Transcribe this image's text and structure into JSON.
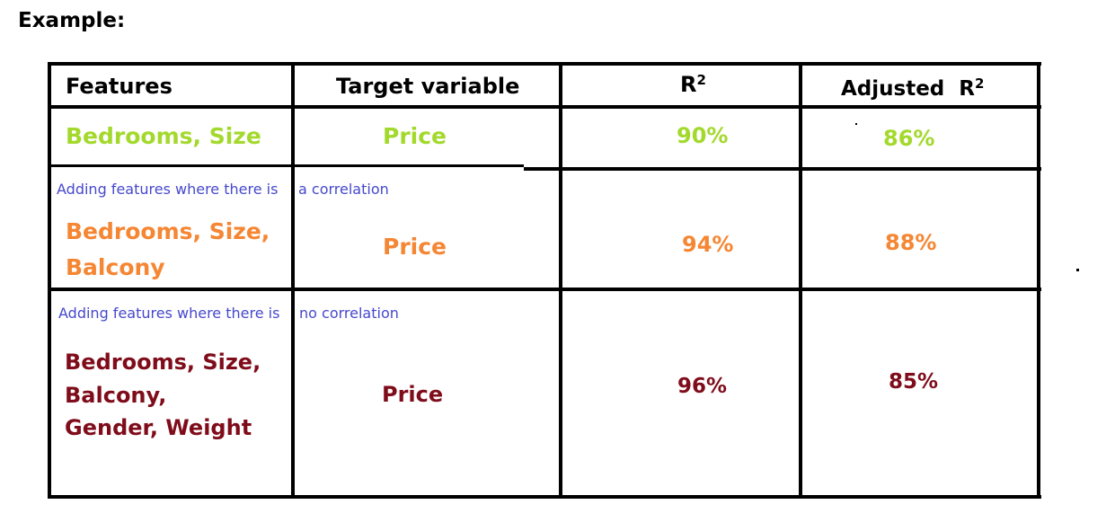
{
  "heading": "Example:",
  "header": {
    "features": "Features",
    "target": "Target variable",
    "r2": "R",
    "r2_sup": "2",
    "adj_r2": "Adjusted  R",
    "adj_r2_sup": "2"
  },
  "rows": [
    {
      "note": "",
      "features_lines": [
        "Bedrooms, Size"
      ],
      "target": "Price",
      "r2": "90%",
      "adj_r2": "86%"
    },
    {
      "note_left": "Adding features where there is",
      "note_right": "a correlation",
      "features_lines": [
        "Bedrooms, Size,",
        "Balcony"
      ],
      "target": "Price",
      "r2": "94%",
      "adj_r2": "88%"
    },
    {
      "note_left": "Adding features where there is",
      "note_right": "no correlation",
      "features_lines": [
        "Bedrooms, Size,",
        "Balcony,",
        "Gender, Weight"
      ],
      "target": "Price",
      "r2": "96%",
      "adj_r2": "85%"
    }
  ],
  "colors": {
    "row1": "#a3d92c",
    "row2": "#f58633",
    "row3": "#7f0c1a",
    "note": "#4648cc",
    "grid": "#000000"
  }
}
